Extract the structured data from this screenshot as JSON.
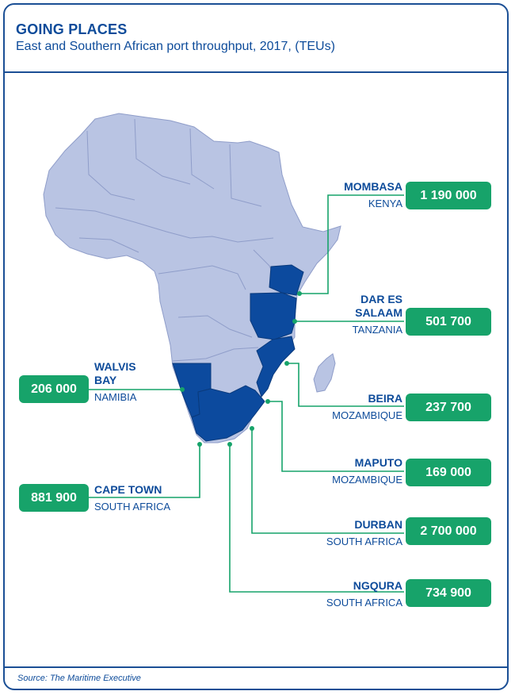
{
  "header": {
    "title": "GOING PLACES",
    "subtitle": "East and Southern African port throughput, 2017, (TEUs)"
  },
  "colors": {
    "border": "#1b4f95",
    "text": "#0d4b9a",
    "land": "#b9c4e3",
    "highlight": "#0c4a9e",
    "value_box": "#17a36a"
  },
  "highlighted_countries": [
    "Kenya",
    "Tanzania",
    "Mozambique",
    "Namibia",
    "South Africa"
  ],
  "ports": [
    {
      "name": "MOMBASA",
      "country": "KENYA",
      "value": "1 190 000"
    },
    {
      "name": "DAR ES SALAAM",
      "name_line1": "DAR ES",
      "name_line2": "SALAAM",
      "country": "TANZANIA",
      "value": "501 700"
    },
    {
      "name": "BEIRA",
      "country": "MOZAMBIQUE",
      "value": "237 700"
    },
    {
      "name": "MAPUTO",
      "country": "MOZAMBIQUE",
      "value": "169 000"
    },
    {
      "name": "DURBAN",
      "country": "SOUTH AFRICA",
      "value": "2 700 000"
    },
    {
      "name": "NGQURA",
      "country": "SOUTH AFRICA",
      "value": "734 900"
    },
    {
      "name": "WALVIS BAY",
      "name_line1": "WALVIS",
      "name_line2": "BAY",
      "country": "NAMIBIA",
      "value": "206 000"
    },
    {
      "name": "CAPE TOWN",
      "country": "SOUTH AFRICA",
      "value": "881 900"
    }
  ],
  "source": "Source: The Maritime Executive"
}
